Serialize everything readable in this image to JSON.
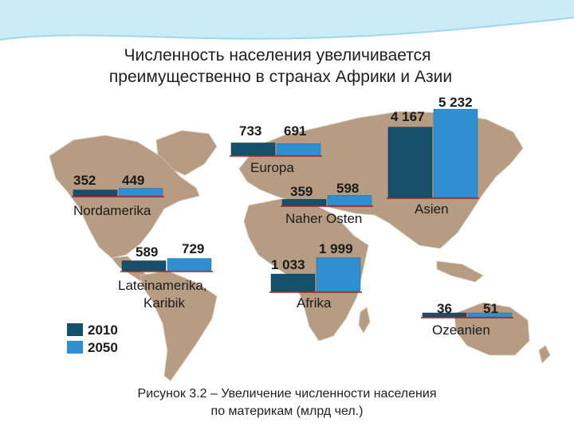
{
  "title": {
    "line1": "Численность населения увеличивается",
    "line2": "преимущественно в странах Африки и Азии"
  },
  "caption": {
    "line1": "Рисунок 3.2 – Увеличение численности населения",
    "line2": "по материкам (млрд чел.)"
  },
  "colors": {
    "y2010": "#17506b",
    "y2050": "#2f8fd0",
    "land": "#b69c82",
    "baseline": "#a02020",
    "header": "#c9ecf6"
  },
  "chart_data": {
    "type": "bar",
    "categories": [
      "Nordamerika",
      "Europa",
      "Naher Osten",
      "Asien",
      "Lateinamerika, Karibik",
      "Afrika",
      "Ozeanien"
    ],
    "series": [
      {
        "name": "2010",
        "values": [
          352,
          733,
          359,
          4167,
          589,
          1033,
          36
        ]
      },
      {
        "name": "2050",
        "values": [
          449,
          691,
          598,
          5232,
          729,
          1999,
          51
        ]
      }
    ],
    "value_labels": {
      "2010": [
        "352",
        "733",
        "359",
        "4 167",
        "589",
        "1 033",
        "36"
      ],
      "2050": [
        "449",
        "691",
        "598",
        "5 232",
        "729",
        "1 999",
        "51"
      ]
    },
    "legend": [
      "2010",
      "2050"
    ],
    "legend_position": "bottom-left"
  }
}
